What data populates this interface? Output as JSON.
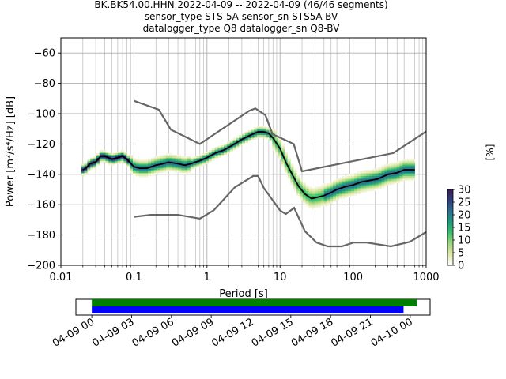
{
  "title_lines": [
    "BK.BK54.00.HHN   2022-04-09 -- 2022-04-09  (46/46 segments)",
    "sensor_type STS-5A sensor_sn STS5A-BV",
    "datalogger_type Q8 datalogger_sn Q8-BV"
  ],
  "chart_data": [
    {
      "type": "heatmap",
      "name_hint": "PPSD",
      "xlabel": "Period [s]",
      "ylabel": "Power [m²/s⁴/Hz] [dB]",
      "x_scale": "log",
      "xlim": [
        0.01,
        1000
      ],
      "ylim": [
        -200,
        -50
      ],
      "x_ticks": [
        0.01,
        0.1,
        1,
        10,
        100,
        1000
      ],
      "x_tick_labels": [
        "0.01",
        "0.1",
        "1",
        "10",
        "100",
        "1000"
      ],
      "y_ticks": [
        -200,
        -180,
        -160,
        -140,
        -120,
        -100,
        -80,
        -60
      ],
      "y_tick_labels": [
        "−200",
        "−180",
        "−160",
        "−140",
        "−120",
        "−100",
        "−80",
        "−60"
      ],
      "grid": true,
      "series": [
        {
          "role": "mean",
          "color": "#000000",
          "x": [
            0.02,
            0.022,
            0.025,
            0.03,
            0.035,
            0.04,
            0.05,
            0.06,
            0.07,
            0.08,
            0.1,
            0.12,
            0.15,
            0.2,
            0.25,
            0.3,
            0.4,
            0.5,
            0.6,
            0.8,
            1,
            1.3,
            1.7,
            2.2,
            3,
            4,
            5,
            6,
            7,
            8,
            10,
            12,
            15,
            18,
            22,
            27,
            33,
            40,
            50,
            60,
            80,
            100,
            130,
            170,
            220,
            300,
            400,
            500,
            700
          ],
          "y": [
            -137,
            -136,
            -133,
            -132,
            -128,
            -128,
            -130,
            -129,
            -128,
            -130,
            -135,
            -136,
            -136,
            -134,
            -133,
            -132,
            -133,
            -134,
            -133,
            -131,
            -129,
            -126,
            -124,
            -121,
            -117,
            -114,
            -112,
            -112,
            -113,
            -116,
            -123,
            -132,
            -141,
            -148,
            -153,
            -156,
            -155,
            -154,
            -152,
            -150,
            -148,
            -147,
            -145,
            -144,
            -143,
            -140,
            -139,
            -137,
            -137
          ]
        },
        {
          "role": "high_noise_model",
          "color": "#666666",
          "x": [
            0.1,
            0.22,
            0.32,
            0.8,
            3.8,
            4.6,
            6.3,
            7.9,
            15.4,
            20,
            354.8,
            10000
          ],
          "y": [
            -91.5,
            -97.4,
            -110.5,
            -120,
            -98,
            -96.5,
            -101,
            -113.5,
            -120,
            -138,
            -126,
            -80.1
          ]
        },
        {
          "role": "low_noise_model",
          "color": "#666666",
          "x": [
            0.1,
            0.17,
            0.4,
            0.8,
            1.24,
            2.4,
            4.3,
            5,
            6,
            10,
            12,
            15.6,
            21.9,
            31.6,
            45,
            70,
            101,
            154,
            328,
            600,
            1000
          ],
          "y": [
            -168,
            -166.7,
            -166.7,
            -169.2,
            -163.7,
            -148.6,
            -141.1,
            -141.1,
            -149,
            -163.8,
            -166.2,
            -162.1,
            -177.5,
            -185,
            -187.5,
            -187.5,
            -185,
            -185,
            -187.5,
            -184.5,
            -178
          ]
        }
      ],
      "colorbar": {
        "label": "[%]",
        "range": [
          0,
          30
        ],
        "ticks": [
          0,
          5,
          10,
          15,
          20,
          25,
          30
        ],
        "colormap": "pqlx-like",
        "colors": [
          "#ffffff",
          "#dfe8a8",
          "#9fd77e",
          "#3cbf6b",
          "#1e9a7e",
          "#2a6f8f",
          "#2f3f7e",
          "#3a1a55"
        ]
      }
    },
    {
      "type": "timeline",
      "name_hint": "data coverage",
      "x_tick_labels": [
        "04-09 00",
        "04-09 03",
        "04-09 06",
        "04-09 09",
        "04-09 12",
        "04-09 15",
        "04-09 18",
        "04-09 21",
        "04-10 00"
      ],
      "xlim_hours": [
        -1.2,
        25.5
      ],
      "bars": [
        {
          "color": "#008000",
          "start_hour": 0,
          "end_hour": 24.5
        },
        {
          "color": "#0000ff",
          "start_hour": 0,
          "end_hour": 23.5
        }
      ]
    }
  ]
}
